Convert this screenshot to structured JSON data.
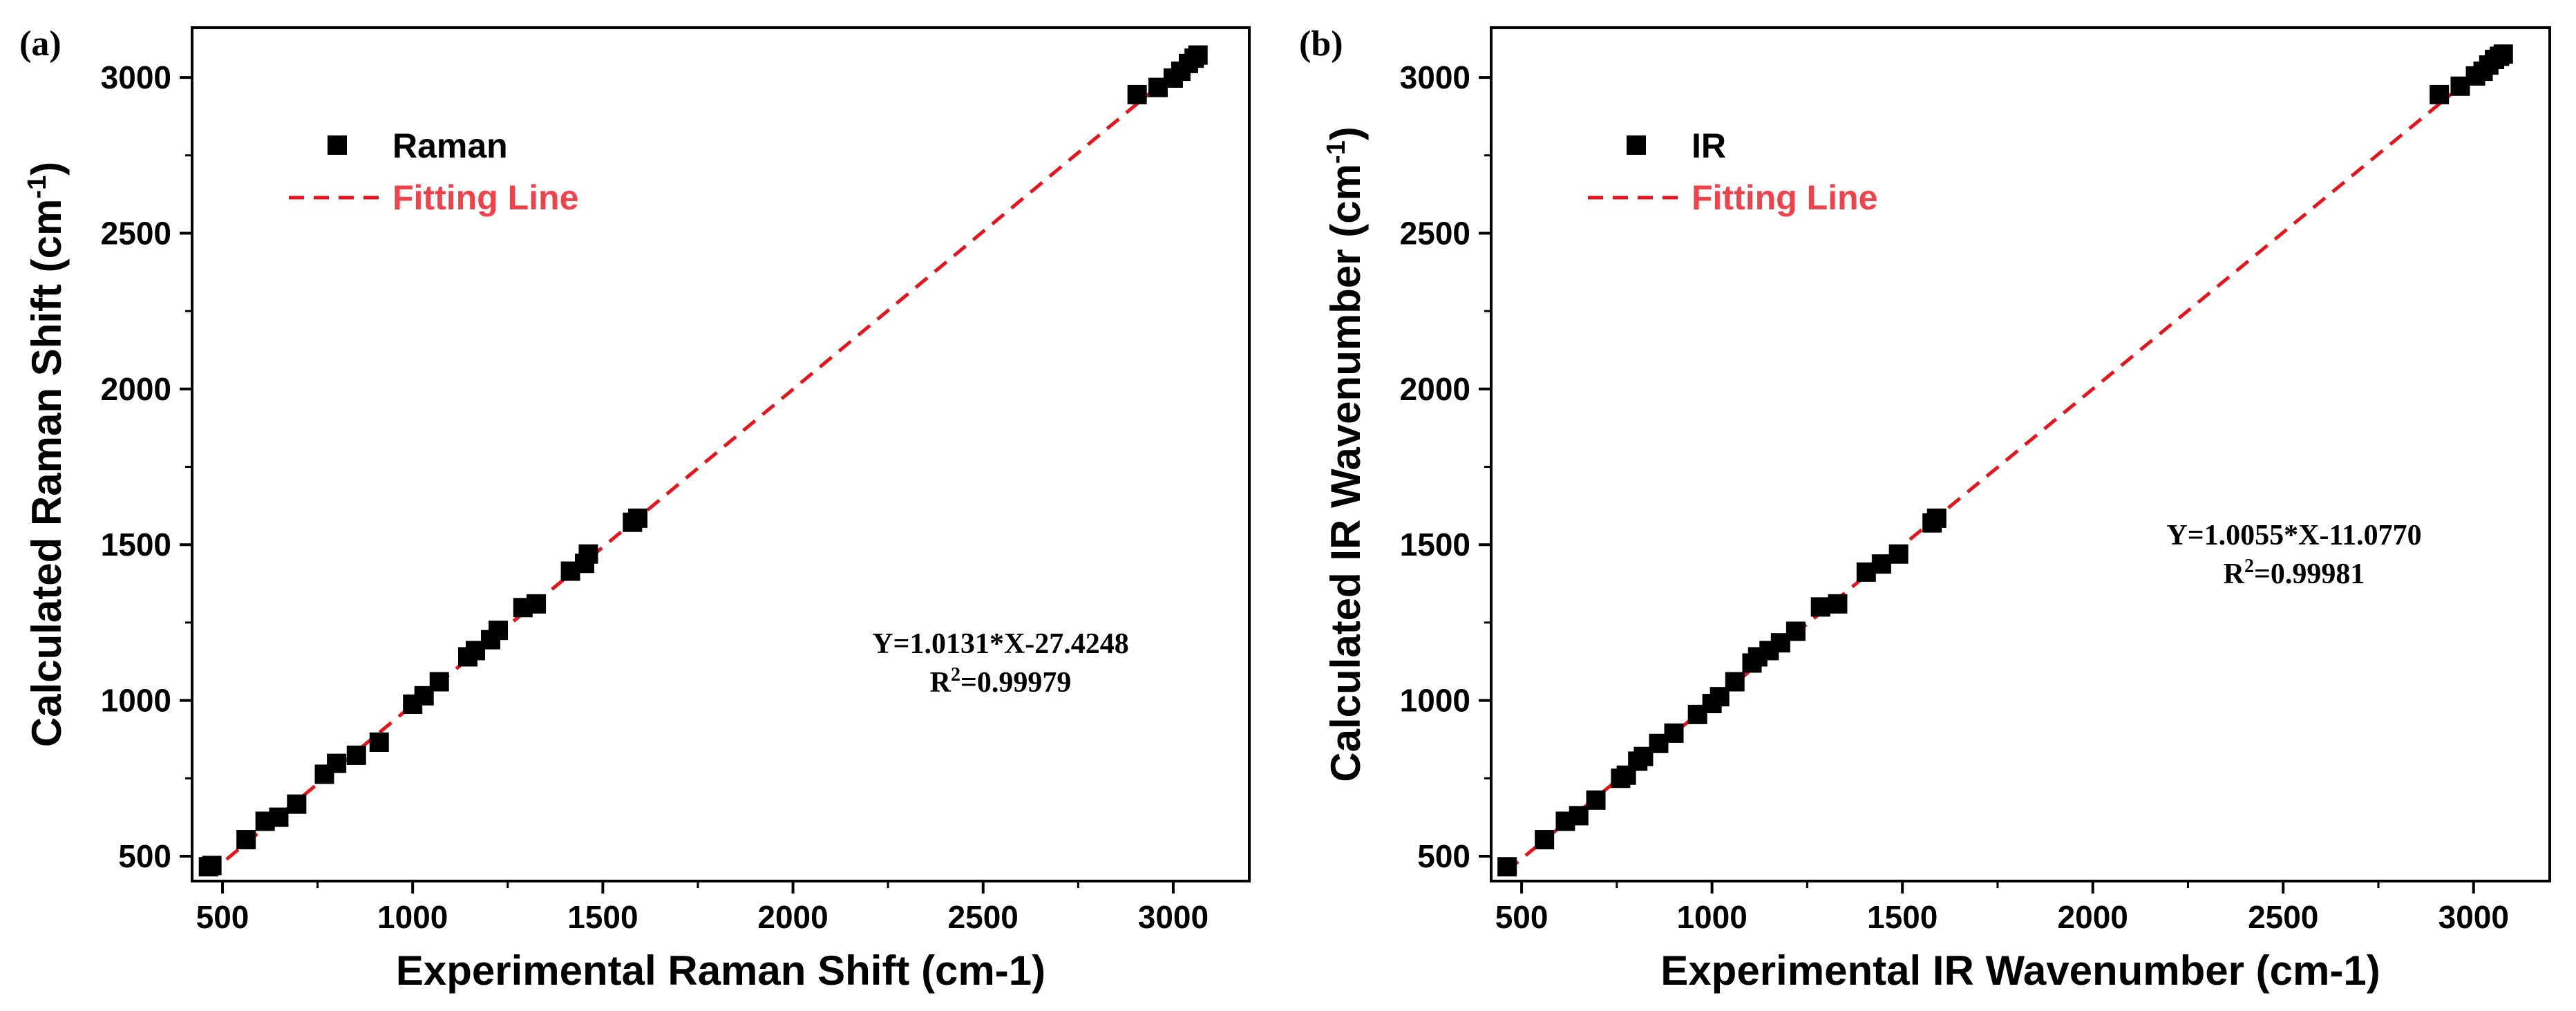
{
  "chart_data": [
    {
      "type": "scatter",
      "panel_label": "(a)",
      "xlabel": "Experimental Raman Shift (cm-1)",
      "ylabel_main": "Calculated Raman Shift (cm",
      "ylabel_sup": "-1",
      "ylabel_end": ")",
      "xlim": [
        420,
        3200
      ],
      "ylim": [
        420,
        3160
      ],
      "xticks": [
        500,
        1000,
        1500,
        2000,
        2500,
        3000
      ],
      "yticks": [
        500,
        1000,
        1500,
        2000,
        2500,
        3000
      ],
      "legend": {
        "position": "top-left",
        "scatter_label": "Raman",
        "line_label": "Fitting Line"
      },
      "fit": {
        "slope": 1.0131,
        "intercept": -27.4248,
        "x_range": [
          460,
          3070
        ]
      },
      "equation_line": "Y=1.0131*X-27.4248",
      "r2_prefix": "R",
      "r2_sup": "2",
      "r2_value": "=0.99979",
      "series": [
        {
          "name": "Raman",
          "points": [
            [
              463,
              466
            ],
            [
              472,
              470
            ],
            [
              562,
              553
            ],
            [
              612,
              612
            ],
            [
              648,
              625
            ],
            [
              695,
              667
            ],
            [
              768,
              763
            ],
            [
              800,
              798
            ],
            [
              852,
              824
            ],
            [
              912,
              866
            ],
            [
              1000,
              988
            ],
            [
              1030,
              1015
            ],
            [
              1070,
              1060
            ],
            [
              1145,
              1140
            ],
            [
              1165,
              1160
            ],
            [
              1205,
              1195
            ],
            [
              1225,
              1225
            ],
            [
              1290,
              1298
            ],
            [
              1325,
              1310
            ],
            [
              1415,
              1415
            ],
            [
              1452,
              1440
            ],
            [
              1462,
              1470
            ],
            [
              1578,
              1572
            ],
            [
              1592,
              1585
            ],
            [
              2905,
              2945
            ],
            [
              2960,
              2968
            ],
            [
              3000,
              2998
            ],
            [
              3020,
              3020
            ],
            [
              3040,
              3045
            ],
            [
              3055,
              3062
            ],
            [
              3065,
              3072
            ]
          ]
        }
      ],
      "colors": {
        "points": "#000000",
        "fit": "#e8141b",
        "legend_line_text": "#f0424a"
      }
    },
    {
      "type": "scatter",
      "panel_label": "(b)",
      "xlabel": "Experimental IR Wavenumber (cm-1)",
      "ylabel_main": "Calculated IR Wavenumber (cm",
      "ylabel_sup": "-1",
      "ylabel_end": ")",
      "xlim": [
        420,
        3200
      ],
      "ylim": [
        420,
        3160
      ],
      "xticks": [
        500,
        1000,
        1500,
        2000,
        2500,
        3000
      ],
      "yticks": [
        500,
        1000,
        1500,
        2000,
        2500,
        3000
      ],
      "legend": {
        "position": "top-left",
        "scatter_label": "IR",
        "line_label": "Fitting Line"
      },
      "fit": {
        "slope": 1.0055,
        "intercept": -11.077,
        "x_range": [
          460,
          3075
        ]
      },
      "equation_line": "Y=1.0055*X-11.0770",
      "r2_prefix": "R",
      "r2_sup": "2",
      "r2_value": "=0.99981",
      "series": [
        {
          "name": "IR",
          "points": [
            [
              462,
              466
            ],
            [
              560,
              553
            ],
            [
              615,
              612
            ],
            [
              650,
              630
            ],
            [
              695,
              680
            ],
            [
              760,
              750
            ],
            [
              775,
              760
            ],
            [
              805,
              805
            ],
            [
              820,
              820
            ],
            [
              860,
              862
            ],
            [
              900,
              895
            ],
            [
              962,
              955
            ],
            [
              1000,
              990
            ],
            [
              1020,
              1012
            ],
            [
              1060,
              1060
            ],
            [
              1105,
              1120
            ],
            [
              1120,
              1140
            ],
            [
              1150,
              1160
            ],
            [
              1180,
              1185
            ],
            [
              1220,
              1222
            ],
            [
              1285,
              1300
            ],
            [
              1330,
              1310
            ],
            [
              1405,
              1412
            ],
            [
              1445,
              1438
            ],
            [
              1490,
              1470
            ],
            [
              1578,
              1570
            ],
            [
              1590,
              1585
            ],
            [
              2910,
              2945
            ],
            [
              2965,
              2972
            ],
            [
              3005,
              3005
            ],
            [
              3025,
              3020
            ],
            [
              3040,
              3040
            ],
            [
              3055,
              3058
            ],
            [
              3068,
              3068
            ],
            [
              3078,
              3075
            ]
          ]
        }
      ],
      "colors": {
        "points": "#000000",
        "fit": "#e8141b",
        "legend_line_text": "#f0424a"
      }
    }
  ]
}
